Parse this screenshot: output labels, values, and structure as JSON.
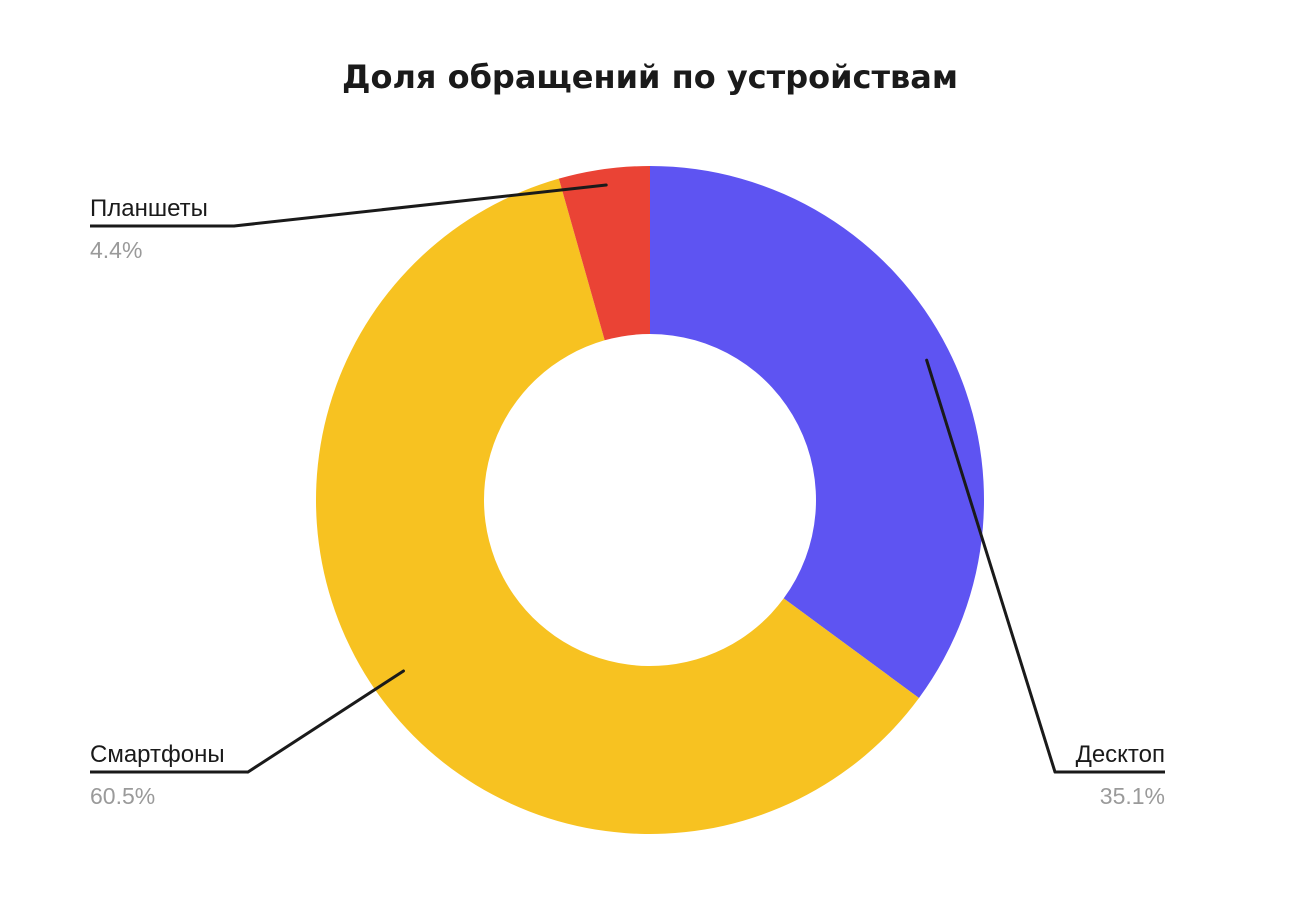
{
  "chart_data": {
    "type": "pie",
    "variant": "donut",
    "title": "Доля обращений по устройствам",
    "slices": [
      {
        "label": "Десктоп",
        "value": 35.1,
        "display": "35.1%",
        "color": "#5E54F2",
        "label_side": "right"
      },
      {
        "label": "Смартфоны",
        "value": 60.5,
        "display": "60.5%",
        "color": "#F7C221",
        "label_side": "left"
      },
      {
        "label": "Планшеты",
        "value": 4.4,
        "display": "4.4%",
        "color": "#EA4335",
        "label_side": "left"
      }
    ],
    "start_angle": "12 o'clock",
    "direction": "clockwise",
    "legend": "none",
    "data_labels": "outside-with-leader-lines"
  }
}
